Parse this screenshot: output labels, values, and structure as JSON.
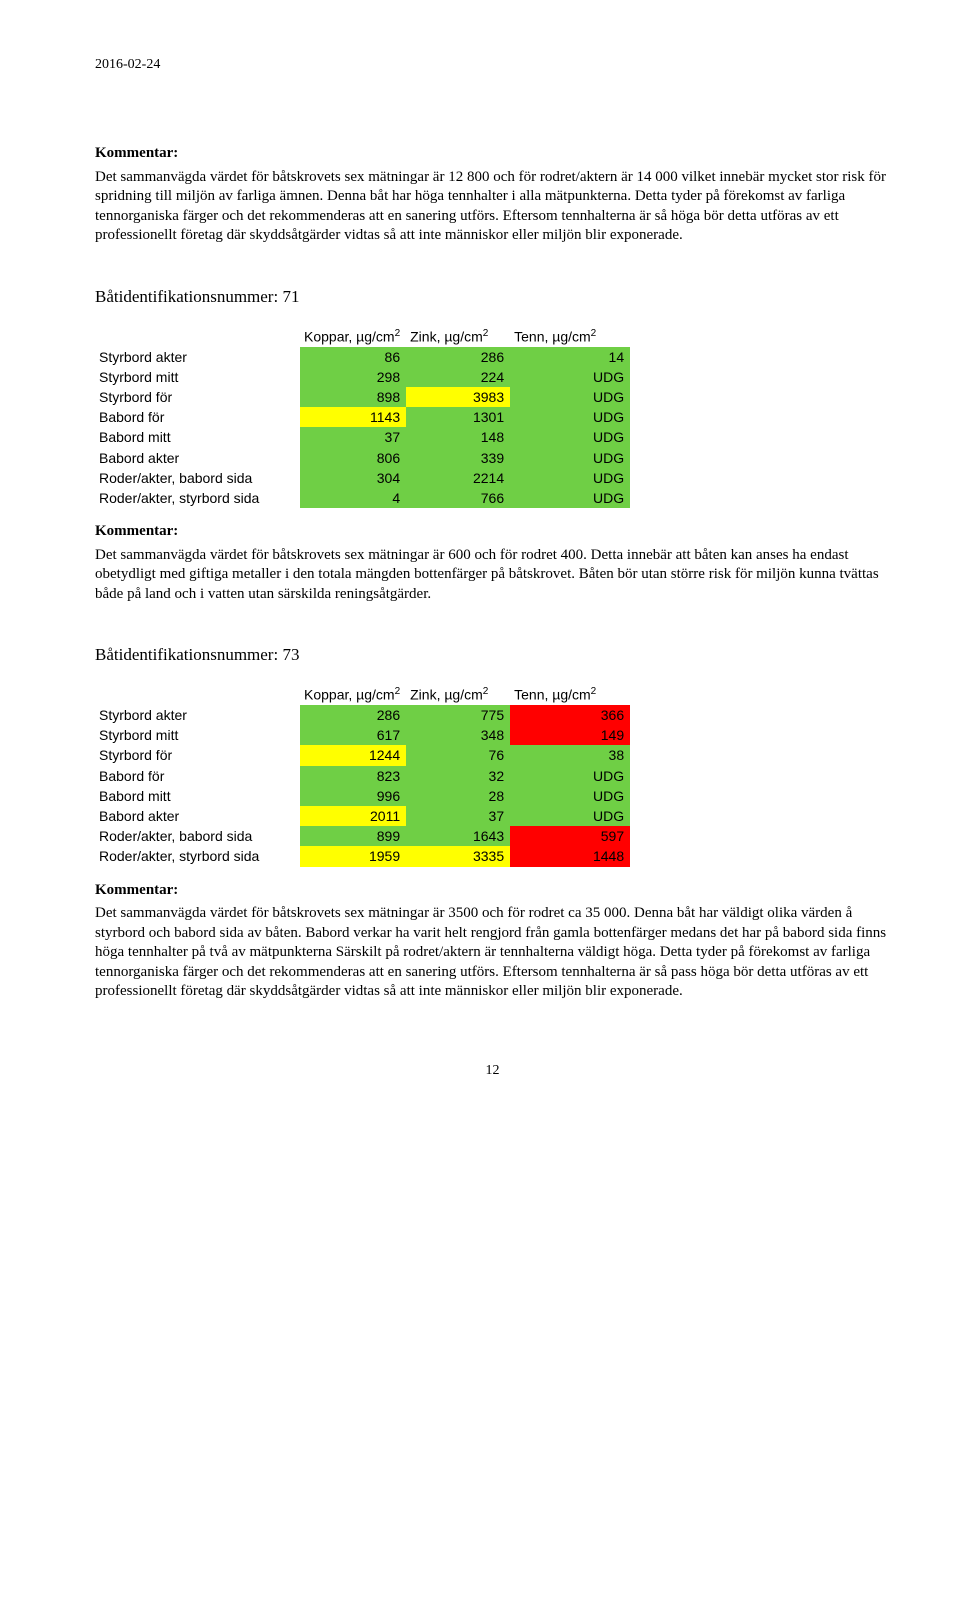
{
  "date": "2016-02-24",
  "colors": {
    "green": "#6fcf45",
    "yellow": "#ffff00",
    "red": "#ff0000",
    "white": "#ffffff"
  },
  "labels": {
    "kommentar": "Kommentar:",
    "col_koppar": "Koppar, µg/cm",
    "col_zink": "Zink, µg/cm",
    "col_tenn": "Tenn, µg/cm",
    "sup": "2"
  },
  "topComment": "Det sammanvägda värdet för båtskrovets sex mätningar är 12 800 och för rodret/aktern är 14 000 vilket innebär mycket stor risk för spridning till miljön av farliga ämnen. Denna båt har höga tennhalter i alla mätpunkterna. Detta tyder på förekomst av farliga tennorganiska färger och det rekommenderas att en sanering utförs. Eftersom tennhalterna är så höga bör detta utföras av ett professionellt företag där skyddsåtgärder vidtas så att inte människor eller miljön blir exponerade.",
  "section71": {
    "heading": "Båtidentifikationsnummer: 71",
    "rows": [
      {
        "label": "Styrbord akter",
        "k": {
          "v": "86",
          "c": "green"
        },
        "z": {
          "v": "286",
          "c": "green"
        },
        "t": {
          "v": "14",
          "c": "green"
        }
      },
      {
        "label": "Styrbord mitt",
        "k": {
          "v": "298",
          "c": "green"
        },
        "z": {
          "v": "224",
          "c": "green"
        },
        "t": {
          "v": "UDG",
          "c": "green"
        }
      },
      {
        "label": "Styrbord för",
        "k": {
          "v": "898",
          "c": "green"
        },
        "z": {
          "v": "3983",
          "c": "yellow"
        },
        "t": {
          "v": "UDG",
          "c": "green"
        }
      },
      {
        "label": "Babord för",
        "k": {
          "v": "1143",
          "c": "yellow"
        },
        "z": {
          "v": "1301",
          "c": "green"
        },
        "t": {
          "v": "UDG",
          "c": "green"
        }
      },
      {
        "label": "Babord mitt",
        "k": {
          "v": "37",
          "c": "green"
        },
        "z": {
          "v": "148",
          "c": "green"
        },
        "t": {
          "v": "UDG",
          "c": "green"
        }
      },
      {
        "label": "Babord akter",
        "k": {
          "v": "806",
          "c": "green"
        },
        "z": {
          "v": "339",
          "c": "green"
        },
        "t": {
          "v": "UDG",
          "c": "green"
        }
      },
      {
        "label": "Roder/akter, babord sida",
        "k": {
          "v": "304",
          "c": "green"
        },
        "z": {
          "v": "2214",
          "c": "green"
        },
        "t": {
          "v": "UDG",
          "c": "green"
        }
      },
      {
        "label": "Roder/akter, styrbord sida",
        "k": {
          "v": "4",
          "c": "green"
        },
        "z": {
          "v": "766",
          "c": "green"
        },
        "t": {
          "v": "UDG",
          "c": "green"
        }
      }
    ],
    "comment": "Det sammanvägda värdet för båtskrovets sex mätningar är 600 och för rodret 400. Detta innebär att båten kan anses ha endast obetydligt med giftiga metaller i den totala mängden bottenfärger på båtskrovet. Båten bör utan större risk för miljön kunna tvättas både på land och i vatten utan särskilda reningsåtgärder."
  },
  "section73": {
    "heading": "Båtidentifikationsnummer: 73",
    "rows": [
      {
        "label": "Styrbord akter",
        "k": {
          "v": "286",
          "c": "green"
        },
        "z": {
          "v": "775",
          "c": "green"
        },
        "t": {
          "v": "366",
          "c": "red"
        }
      },
      {
        "label": "Styrbord mitt",
        "k": {
          "v": "617",
          "c": "green"
        },
        "z": {
          "v": "348",
          "c": "green"
        },
        "t": {
          "v": "149",
          "c": "red"
        }
      },
      {
        "label": "Styrbord för",
        "k": {
          "v": "1244",
          "c": "yellow"
        },
        "z": {
          "v": "76",
          "c": "green"
        },
        "t": {
          "v": "38",
          "c": "green"
        }
      },
      {
        "label": "Babord för",
        "k": {
          "v": "823",
          "c": "green"
        },
        "z": {
          "v": "32",
          "c": "green"
        },
        "t": {
          "v": "UDG",
          "c": "green"
        }
      },
      {
        "label": "Babord mitt",
        "k": {
          "v": "996",
          "c": "green"
        },
        "z": {
          "v": "28",
          "c": "green"
        },
        "t": {
          "v": "UDG",
          "c": "green"
        }
      },
      {
        "label": "Babord akter",
        "k": {
          "v": "2011",
          "c": "yellow"
        },
        "z": {
          "v": "37",
          "c": "green"
        },
        "t": {
          "v": "UDG",
          "c": "green"
        }
      },
      {
        "label": "Roder/akter, babord sida",
        "k": {
          "v": "899",
          "c": "green"
        },
        "z": {
          "v": "1643",
          "c": "green"
        },
        "t": {
          "v": "597",
          "c": "red"
        }
      },
      {
        "label": "Roder/akter, styrbord sida",
        "k": {
          "v": "1959",
          "c": "yellow"
        },
        "z": {
          "v": "3335",
          "c": "yellow"
        },
        "t": {
          "v": "1448",
          "c": "red"
        }
      }
    ],
    "comment": "Det sammanvägda värdet för båtskrovets sex mätningar är 3500 och för rodret ca 35 000. Denna båt har väldigt olika värden å styrbord och babord sida av båten. Babord verkar ha varit helt rengjord från gamla bottenfärger medans det har på babord sida finns höga tennhalter på två av mätpunkterna Särskilt på rodret/aktern är tennhalterna väldigt höga. Detta tyder på förekomst av farliga tennorganiska färger och det rekommenderas att en sanering utförs. Eftersom tennhalterna är så pass höga bör detta utföras av ett professionellt företag där skyddsåtgärder vidtas så att inte människor eller miljön blir exponerade."
  },
  "pageNumber": "12"
}
